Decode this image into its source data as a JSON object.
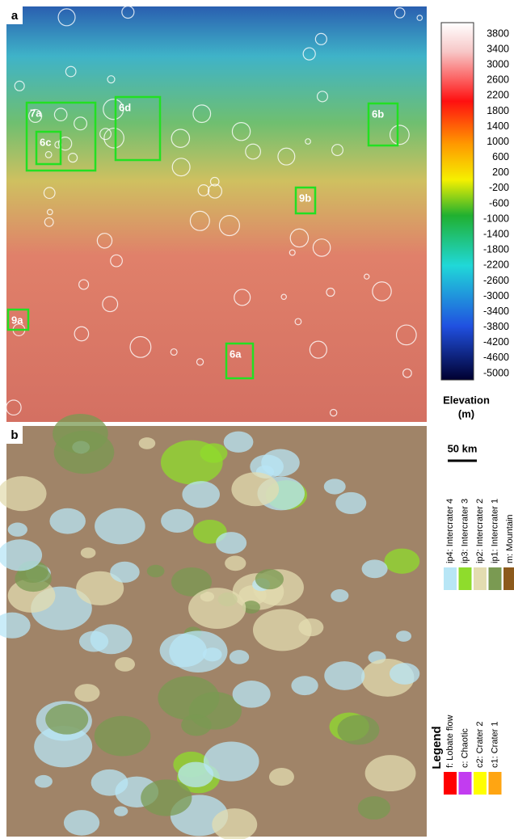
{
  "panels": [
    {
      "label": "a",
      "boxes": [
        {
          "label": "7a"
        },
        {
          "label": "6c"
        },
        {
          "label": "6d"
        },
        {
          "label": "6b"
        },
        {
          "label": "9b"
        },
        {
          "label": "9a"
        },
        {
          "label": "6a"
        }
      ]
    },
    {
      "label": "b"
    }
  ],
  "colorbar": {
    "ticks": [
      3800,
      3400,
      3000,
      2600,
      2200,
      1800,
      1400,
      1000,
      600,
      200,
      -200,
      -600,
      -1000,
      -1400,
      -1800,
      -2200,
      -2600,
      -3000,
      -3400,
      -3800,
      -4200,
      -4600,
      -5000
    ],
    "title": "Elevation",
    "unit": "(m)"
  },
  "scale_bar": "50 km",
  "legend": {
    "title": "Legend",
    "items": [
      {
        "label": "ip4: Intercrater 4",
        "color": "#b8e6f6"
      },
      {
        "label": "ip3: Intercrater 3",
        "color": "#8fdc2c"
      },
      {
        "label": "ip2: Intercrater 2",
        "color": "#e3dcb0"
      },
      {
        "label": "ip1: Intercrater 1",
        "color": "#7a9a52"
      },
      {
        "label": "m: Mountain",
        "color": "#8c5a1c"
      },
      {
        "label": "f: Lobate flow",
        "color": "#ff0000"
      },
      {
        "label": "c: Chaotic",
        "color": "#c23cf0"
      },
      {
        "label": "c2: Crater 2",
        "color": "#ffff00"
      },
      {
        "label": "c1: Crater 1",
        "color": "#ffa512"
      }
    ]
  }
}
